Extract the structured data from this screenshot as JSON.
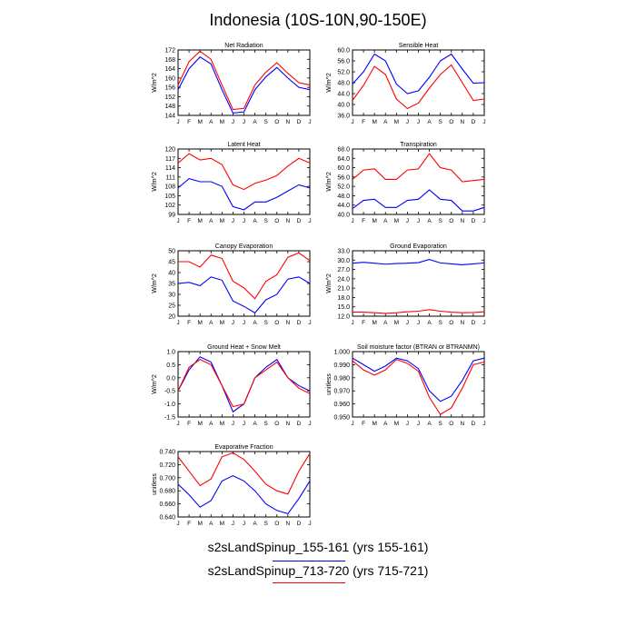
{
  "figure_title": "Indonesia (10S-10N,90-150E)",
  "months": [
    "J",
    "F",
    "M",
    "A",
    "M",
    "J",
    "J",
    "A",
    "S",
    "O",
    "N",
    "D",
    "J"
  ],
  "series_colors": [
    "#0000ff",
    "#ff0000"
  ],
  "legend": [
    {
      "label": "s2sLandSpinup_155-161 (yrs 155-161)",
      "color": "#0000ff"
    },
    {
      "label": "s2sLandSpinup_713-720 (yrs 715-721)",
      "color": "#ff0000"
    }
  ],
  "chart_data": [
    {
      "type": "line",
      "title": "Net Radiation",
      "ylabel": "W/m^2",
      "ylim": [
        144,
        172
      ],
      "yticks": [
        "144",
        "148",
        "152",
        "156",
        "160",
        "164",
        "168",
        "172"
      ],
      "series": [
        {
          "name": "s2sLandSpinup_155-161",
          "values": [
            155,
            164,
            169,
            166,
            155,
            145,
            145.5,
            155,
            160.5,
            164.5,
            160,
            156,
            155
          ]
        },
        {
          "name": "s2sLandSpinup_713-720",
          "values": [
            157,
            167,
            171.5,
            168,
            157,
            146.5,
            147,
            157,
            162.5,
            166.5,
            162,
            158,
            157
          ]
        }
      ]
    },
    {
      "type": "line",
      "title": "Sensible Heat",
      "ylabel": "W/m^2",
      "ylim": [
        36,
        60
      ],
      "yticks": [
        "36.0",
        "40.0",
        "44.0",
        "48.0",
        "52.0",
        "56.0",
        "60.0"
      ],
      "series": [
        {
          "name": "s2sLandSpinup_155-161",
          "values": [
            47.5,
            52,
            58.5,
            56,
            47.5,
            44,
            45,
            50,
            56,
            58.5,
            53,
            47.8,
            48
          ]
        },
        {
          "name": "s2sLandSpinup_713-720",
          "values": [
            41.5,
            47,
            54,
            51,
            42,
            38.5,
            40.5,
            46,
            51,
            54.5,
            48,
            41.5,
            42
          ]
        }
      ]
    },
    {
      "type": "line",
      "title": "Latent Heat",
      "ylabel": "W/m^2",
      "ylim": [
        99,
        120
      ],
      "yticks": [
        "99",
        "102",
        "105",
        "108",
        "111",
        "114",
        "117",
        "120"
      ],
      "series": [
        {
          "name": "s2sLandSpinup_155-161",
          "values": [
            107.5,
            110.5,
            109.5,
            109.5,
            108,
            101.5,
            100.5,
            103,
            103,
            104.5,
            106.5,
            108.5,
            107.5
          ]
        },
        {
          "name": "s2sLandSpinup_713-720",
          "values": [
            115.5,
            118.5,
            116.5,
            117,
            115,
            108.5,
            107,
            109,
            110,
            111.5,
            114.5,
            117,
            115.5
          ]
        }
      ]
    },
    {
      "type": "line",
      "title": "Transpiration",
      "ylabel": "W/m^2",
      "ylim": [
        40,
        68
      ],
      "yticks": [
        "40.0",
        "44.0",
        "48.0",
        "52.0",
        "56.0",
        "60.0",
        "64.0",
        "68.0"
      ],
      "series": [
        {
          "name": "s2sLandSpinup_155-161",
          "values": [
            42.5,
            46,
            46.5,
            43,
            43,
            46,
            46.5,
            50.5,
            46.5,
            46,
            41.5,
            41.5,
            43
          ]
        },
        {
          "name": "s2sLandSpinup_713-720",
          "values": [
            55,
            59,
            59.5,
            55,
            55,
            59,
            59.5,
            66,
            60,
            59,
            54,
            54.5,
            55
          ]
        }
      ]
    },
    {
      "type": "line",
      "title": "Canopy Evaporation",
      "ylabel": "W/m^2",
      "ylim": [
        20,
        50
      ],
      "yticks": [
        "20",
        "25",
        "30",
        "35",
        "40",
        "45",
        "50"
      ],
      "series": [
        {
          "name": "s2sLandSpinup_155-161",
          "values": [
            35,
            35.5,
            34,
            38,
            36.5,
            27,
            24.5,
            21.5,
            27.5,
            30,
            37,
            38,
            35
          ]
        },
        {
          "name": "s2sLandSpinup_713-720",
          "values": [
            45,
            45,
            42.5,
            48,
            46.5,
            36,
            33,
            28,
            36,
            39,
            47,
            49,
            45.5
          ]
        }
      ]
    },
    {
      "type": "line",
      "title": "Ground Evaporation",
      "ylabel": "W/m^2",
      "ylim": [
        12,
        33
      ],
      "yticks": [
        "12.0",
        "15.0",
        "18.0",
        "21.0",
        "24.0",
        "27.0",
        "30.0",
        "33.0"
      ],
      "series": [
        {
          "name": "s2sLandSpinup_155-161",
          "values": [
            29,
            29.3,
            29,
            28.7,
            28.9,
            29,
            29.2,
            30.2,
            29.1,
            28.8,
            28.5,
            28.8,
            29.1
          ]
        },
        {
          "name": "s2sLandSpinup_713-720",
          "values": [
            13.3,
            13.3,
            13.1,
            12.9,
            13.1,
            13.4,
            13.6,
            14.1,
            13.6,
            13.3,
            13.1,
            13.2,
            13.4
          ]
        }
      ]
    },
    {
      "type": "line",
      "title": "Ground Heat + Snow Melt",
      "ylabel": "W/m^2",
      "ylim": [
        -1.5,
        1.0
      ],
      "yticks": [
        "-1.5",
        "-1.0",
        "-0.5",
        "0.0",
        "0.5",
        "1.0"
      ],
      "series": [
        {
          "name": "s2sLandSpinup_155-161",
          "values": [
            -0.5,
            0.3,
            0.8,
            0.6,
            -0.3,
            -1.3,
            -1.0,
            0.0,
            0.4,
            0.7,
            0.0,
            -0.3,
            -0.5
          ]
        },
        {
          "name": "s2sLandSpinup_713-720",
          "values": [
            -0.5,
            0.4,
            0.7,
            0.5,
            -0.3,
            -1.1,
            -1.0,
            0.0,
            0.3,
            0.6,
            0.0,
            -0.4,
            -0.6
          ]
        }
      ]
    },
    {
      "type": "line",
      "title": "Soil moisture factor (BTRAN or BTRANMN)",
      "ylabel": "unitless",
      "ylim": [
        0.95,
        1.0
      ],
      "yticks": [
        "0.950",
        "0.960",
        "0.970",
        "0.980",
        "0.990",
        "1.000"
      ],
      "series": [
        {
          "name": "s2sLandSpinup_155-161",
          "values": [
            0.995,
            0.99,
            0.985,
            0.989,
            0.995,
            0.993,
            0.987,
            0.97,
            0.962,
            0.966,
            0.978,
            0.993,
            0.995
          ]
        },
        {
          "name": "s2sLandSpinup_713-720",
          "values": [
            0.993,
            0.986,
            0.982,
            0.986,
            0.994,
            0.991,
            0.985,
            0.965,
            0.952,
            0.957,
            0.972,
            0.99,
            0.992
          ]
        }
      ]
    },
    {
      "type": "line",
      "title": "Evaporative Fraction",
      "ylabel": "unitless",
      "ylim": [
        0.64,
        0.74
      ],
      "yticks": [
        "0.640",
        "0.660",
        "0.680",
        "0.700",
        "0.720",
        "0.740"
      ],
      "series": [
        {
          "name": "s2sLandSpinup_155-161",
          "values": [
            0.69,
            0.674,
            0.655,
            0.665,
            0.695,
            0.703,
            0.695,
            0.68,
            0.66,
            0.65,
            0.645,
            0.668,
            0.695
          ]
        },
        {
          "name": "s2sLandSpinup_713-720",
          "values": [
            0.732,
            0.71,
            0.688,
            0.698,
            0.732,
            0.738,
            0.728,
            0.71,
            0.69,
            0.68,
            0.675,
            0.71,
            0.737
          ]
        }
      ]
    }
  ]
}
